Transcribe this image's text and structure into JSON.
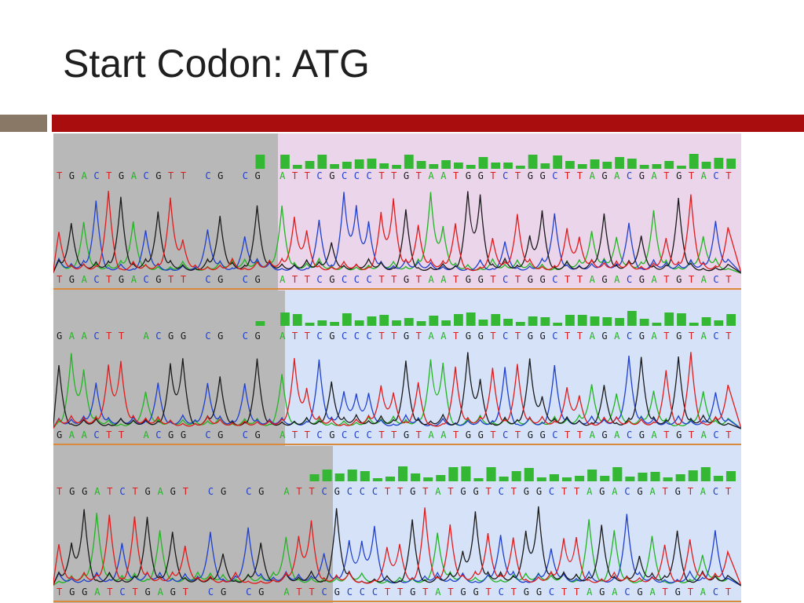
{
  "slide": {
    "title": "Start Codon: ATG"
  },
  "colors": {
    "title": "#1f1f1f",
    "accent_bar": "#8a7866",
    "main_bar": "#a90d0d",
    "low_quality_region": "#b8b8b8",
    "panel1_region": "#ead5ea",
    "panel2_region": "#d5e2f8",
    "panel3_region": "#d5e2f8",
    "base_A": "#22b422",
    "base_C": "#1f3fcf",
    "base_G": "#1a1a1a",
    "base_T": "#e01b1b",
    "quality_bar": "#34b834",
    "separator": "#d98a3a"
  },
  "viewer": {
    "scroll_up_icon": "▲",
    "scroll_down_icon": "▼",
    "panels": [
      {
        "name": "trace-1",
        "sequence": "TGACTGACGTT CG CG ATTCGCCCTTGTAATGGTCTGGCTTAGACGATGTACT"
      },
      {
        "name": "trace-2",
        "sequence": "GAACTT ACGG CG CG ATTCGCCCTTGTAATGGTCTGGCTTAGACGATGTACT"
      },
      {
        "name": "trace-3",
        "sequence": "TGGATCTGAGT CG CG ATTCGCCCTTGTATGGTCTGGCTTAGACGATGTACT"
      }
    ]
  }
}
